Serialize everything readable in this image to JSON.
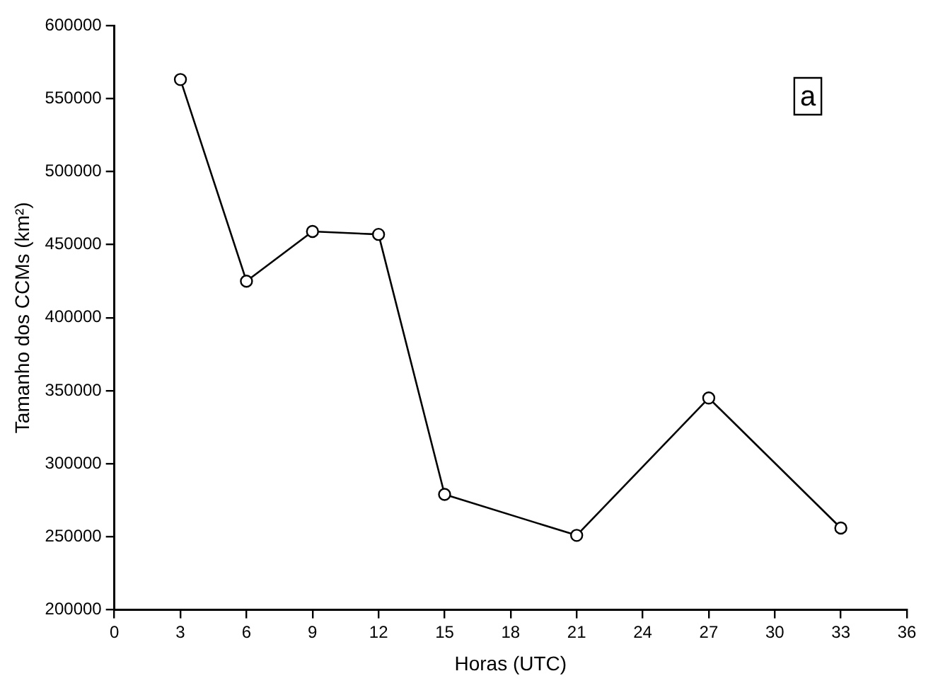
{
  "chart_data": {
    "type": "line",
    "xlabel": "Horas (UTC)",
    "ylabel": "Tamanho dos CCMs (km²)",
    "x": [
      3,
      6,
      9,
      12,
      15,
      21,
      27,
      33
    ],
    "series": [
      {
        "color": "#000000",
        "values": [
          563000,
          425000,
          459000,
          457000,
          279000,
          251000,
          345000,
          256000
        ]
      }
    ],
    "xlim": [
      0,
      36
    ],
    "xticks": [
      0,
      3,
      6,
      9,
      12,
      15,
      18,
      21,
      24,
      27,
      30,
      33,
      36
    ],
    "ylim": [
      200000,
      600000
    ],
    "yticks": [
      200000,
      250000,
      300000,
      350000,
      400000,
      450000,
      500000,
      550000,
      600000
    ],
    "marker": "circle",
    "line_style": "solid",
    "grid": false,
    "legend": false,
    "annotations": [
      "a"
    ]
  }
}
